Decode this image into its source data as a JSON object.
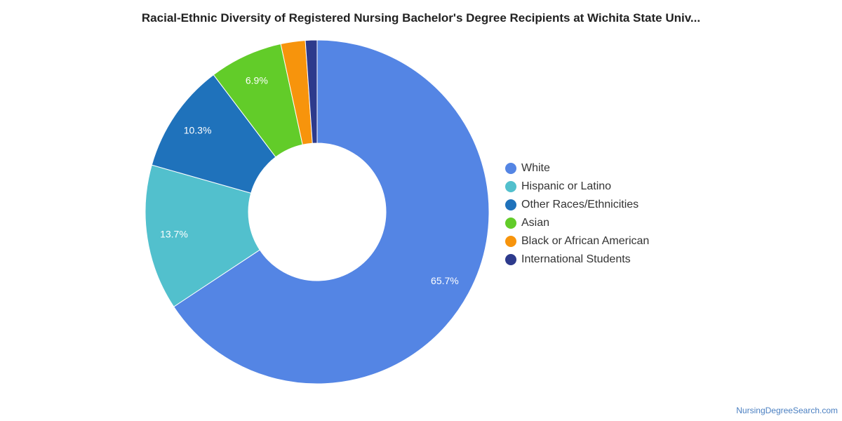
{
  "chart_data": {
    "type": "pie",
    "title": "Racial-Ethnic Diversity of Registered Nursing Bachelor's Degree Recipients at Wichita State Univ...",
    "legend_position": "right",
    "series": [
      {
        "name": "White",
        "value": 65.7,
        "label": "65.7%",
        "color": "#5485e4"
      },
      {
        "name": "Hispanic or Latino",
        "value": 13.7,
        "label": "13.7%",
        "color": "#52c0cd"
      },
      {
        "name": "Other Races/Ethnicities",
        "value": 10.3,
        "label": "10.3%",
        "color": "#1f72bb"
      },
      {
        "name": "Asian",
        "value": 6.9,
        "label": "6.9%",
        "color": "#62cc29"
      },
      {
        "name": "Black or African American",
        "value": 2.3,
        "label": "",
        "color": "#f7940c"
      },
      {
        "name": "International Students",
        "value": 1.1,
        "label": "",
        "color": "#2d3a8c"
      }
    ]
  },
  "credit": "NursingDegreeSearch.com"
}
